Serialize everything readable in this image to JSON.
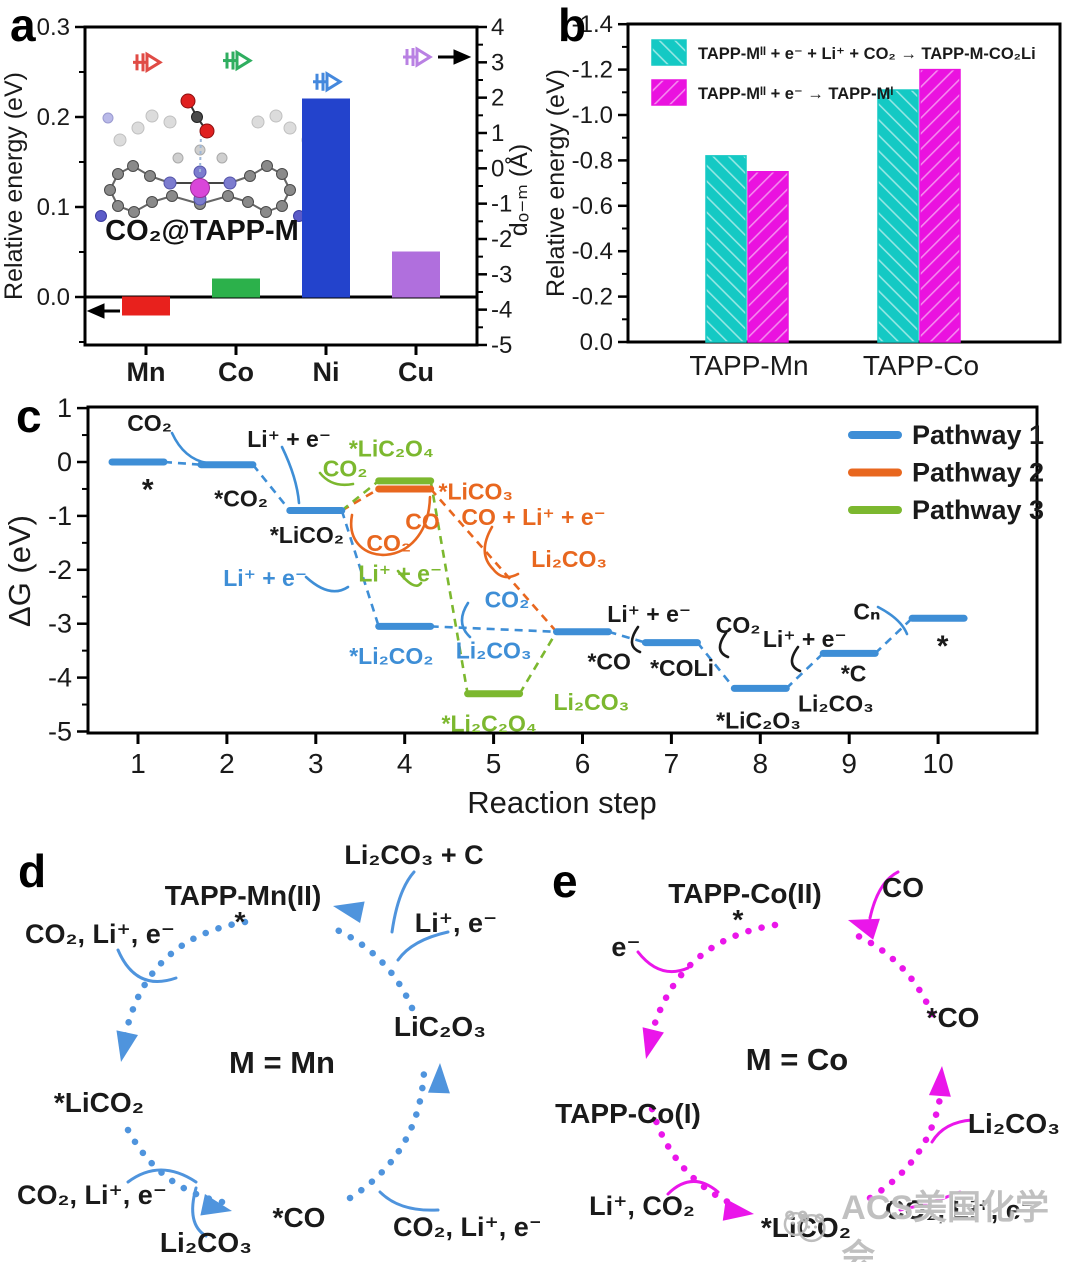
{
  "colors": {
    "black": "#1a1a1a",
    "bar_red": "#e8211d",
    "bar_green": "#2cb14b",
    "bar_blue": "#2343cc",
    "bar_purple": "#b06fdd",
    "marker_red": "#e04b45",
    "marker_green": "#2fae60",
    "marker_blue": "#4488dd",
    "marker_purple": "#b981e3",
    "cyan": "#14c9c4",
    "magenta": "#ea12df",
    "pathway1": "#3e8ed6",
    "pathway2": "#e8671f",
    "pathway3": "#7cb82f",
    "cycle_blue": "#4f94dd",
    "cycle_magenta": "#ea16ea"
  },
  "panel_letters": {
    "a": "a",
    "b": "b",
    "c": "c",
    "d": "d",
    "e": "e"
  },
  "chart_data": [
    {
      "panel": "a",
      "type": "bar",
      "categories": [
        "Mn",
        "Co",
        "Ni",
        "Cu"
      ],
      "series": [
        {
          "name": "Relative energy",
          "type": "bar",
          "axis": "left",
          "values": [
            -0.02,
            0.02,
            0.22,
            0.05
          ]
        },
        {
          "name": "dO-M distance",
          "type": "scatter",
          "axis": "right",
          "marker": "right-arrow-glyph",
          "values": [
            3.0,
            3.05,
            2.45,
            3.15
          ]
        }
      ],
      "left_axis": {
        "label": "Relative energy (eV)",
        "min": -0.053,
        "max": 0.3,
        "ticks": [
          "0.0",
          "0.1",
          "0.2",
          "0.3"
        ],
        "tick_values": [
          0,
          0.1,
          0.2,
          0.3
        ]
      },
      "right_axis": {
        "label": "dₒ₋ₘ (Å)",
        "min": -5,
        "max": 4,
        "ticks": [
          "4",
          "3",
          "2",
          "1",
          "0",
          "-1",
          "-2",
          "-3",
          "-4",
          "-5"
        ],
        "tick_values": [
          4,
          3,
          2,
          1,
          0,
          -1,
          -2,
          -3,
          -4,
          -5
        ]
      },
      "inset_label": "CO₂@TAPP-M",
      "grid": false
    },
    {
      "panel": "b",
      "type": "bar",
      "categories": [
        "TAPP-Mn",
        "TAPP-Co"
      ],
      "series": [
        {
          "name": "TAPP-Mᴵᴵ + e⁻ + Li⁺ + CO₂ → TAPP-M-CO₂Li",
          "colorKey": "cyan",
          "hatch": "\\",
          "values": [
            -0.82,
            -1.11
          ]
        },
        {
          "name": "TAPP-Mᴵᴵ + e⁻ → TAPP-Mᴵ",
          "colorKey": "magenta",
          "hatch": "/",
          "values": [
            -0.75,
            -1.2
          ]
        }
      ],
      "y_axis": {
        "label": "Relative energy (eV)",
        "inverted": true,
        "min": 0,
        "max": -1.4,
        "ticks": [
          "-1.4",
          "-1.2",
          "-1.0",
          "-0.8",
          "-0.6",
          "-0.4",
          "-0.2",
          "0.0"
        ],
        "tick_values": [
          -1.4,
          -1.2,
          -1.0,
          -0.8,
          -0.6,
          -0.4,
          -0.2,
          0.0
        ]
      },
      "legend_position": "top-left",
      "grid": false
    },
    {
      "panel": "c",
      "type": "line",
      "subtype": "energy-level-diagram",
      "xlabel": "Reaction step",
      "ylabel": "ΔG (eV)",
      "x_ticks": [
        "1",
        "2",
        "3",
        "4",
        "5",
        "6",
        "7",
        "8",
        "9",
        "10"
      ],
      "x_tick_values": [
        1,
        2,
        3,
        4,
        5,
        6,
        7,
        8,
        9,
        10
      ],
      "ylim": [
        -5,
        1
      ],
      "y_ticks": [
        "1",
        "0",
        "-1",
        "-2",
        "-3",
        "-4",
        "-5"
      ],
      "y_tick_values": [
        1,
        0,
        -1,
        -2,
        -3,
        -4,
        -5
      ],
      "legend": [
        {
          "label": "Pathway 1",
          "colorKey": "pathway1"
        },
        {
          "label": "Pathway 2",
          "colorKey": "pathway2"
        },
        {
          "label": "Pathway 3",
          "colorKey": "pathway3"
        }
      ],
      "legend_position": "top-right",
      "levels": {
        "p1": [
          {
            "step": 1,
            "dG": 0.0
          },
          {
            "step": 2,
            "dG": -0.05
          },
          {
            "step": 3,
            "dG": -0.9
          },
          {
            "step": 4,
            "dG": -3.05
          },
          {
            "step": 6,
            "dG": -3.15
          },
          {
            "step": 7,
            "dG": -3.35
          },
          {
            "step": 8,
            "dG": -4.2
          },
          {
            "step": 9,
            "dG": -3.55
          },
          {
            "step": 10,
            "dG": -2.9
          }
        ],
        "p2": [
          {
            "step": 4,
            "dG": -0.5
          }
        ],
        "p3": [
          {
            "step": 4,
            "dG": -0.35
          },
          {
            "step": 5,
            "dG": -4.3
          }
        ]
      },
      "connections": [
        {
          "colorKey": "pathway1",
          "route": [
            [
              "p1",
              0
            ],
            [
              "p1",
              1
            ],
            [
              "p1",
              2
            ],
            [
              "p1",
              3
            ],
            [
              "p1",
              4
            ],
            [
              "p1",
              5
            ],
            [
              "p1",
              6
            ],
            [
              "p1",
              7
            ],
            [
              "p1",
              8
            ]
          ]
        },
        {
          "colorKey": "pathway2",
          "route": [
            [
              "p1",
              2
            ],
            [
              "p2",
              0
            ],
            [
              "p1",
              4
            ]
          ]
        },
        {
          "colorKey": "pathway3",
          "route": [
            [
              "p1",
              2
            ],
            [
              "p3",
              0
            ],
            [
              "p3",
              1
            ],
            [
              "p1",
              4
            ]
          ]
        }
      ],
      "annotations": [
        {
          "x": 1.13,
          "y": 0.72,
          "text": "CO₂",
          "c": "k"
        },
        {
          "x": 2.7,
          "y": 0.43,
          "text": "Li⁺ + e⁻",
          "c": "k"
        },
        {
          "x": 1.11,
          "y": -0.55,
          "text": "*",
          "c": "k",
          "size": 30
        },
        {
          "x": 2.16,
          "y": -0.68,
          "text": "*CO₂",
          "c": "k"
        },
        {
          "x": 2.9,
          "y": -1.35,
          "text": "*LiCO₂",
          "c": "k"
        },
        {
          "x": 2.43,
          "y": -2.15,
          "text": "Li⁺ + e⁻",
          "c": "1"
        },
        {
          "x": 3.33,
          "y": -0.12,
          "text": "CO₂",
          "c": "3"
        },
        {
          "x": 3.85,
          "y": 0.25,
          "text": "*LiC₂O₄",
          "c": "3"
        },
        {
          "x": 4.8,
          "y": -0.55,
          "text": "*LiCO₃",
          "c": "2"
        },
        {
          "x": 4.2,
          "y": -1.1,
          "text": "CO",
          "c": "2"
        },
        {
          "x": 3.82,
          "y": -1.5,
          "text": "CO₂",
          "c": "2"
        },
        {
          "x": 5.45,
          "y": -1.02,
          "text": "CO + Li⁺ + e⁻",
          "c": "2"
        },
        {
          "x": 5.85,
          "y": -1.8,
          "text": "Li₂CO₃",
          "c": "2"
        },
        {
          "x": 3.95,
          "y": -2.07,
          "text": "Li⁺ + e⁻",
          "c": "3"
        },
        {
          "x": 5.15,
          "y": -2.55,
          "text": "CO₂",
          "c": "1"
        },
        {
          "x": 5.0,
          "y": -3.5,
          "text": "Li₂CO₃",
          "c": "1"
        },
        {
          "x": 3.85,
          "y": -3.6,
          "text": "*Li₂CO₂",
          "c": "1"
        },
        {
          "x": 6.3,
          "y": -3.7,
          "text": "*CO",
          "c": "k"
        },
        {
          "x": 4.95,
          "y": -4.85,
          "text": "*Li₂C₂O₄",
          "c": "3"
        },
        {
          "x": 6.1,
          "y": -4.45,
          "text": "Li₂CO₃",
          "c": "3"
        },
        {
          "x": 6.75,
          "y": -2.82,
          "text": "Li⁺ + e⁻",
          "c": "k"
        },
        {
          "x": 7.12,
          "y": -3.82,
          "text": "*COLi",
          "c": "k"
        },
        {
          "x": 7.75,
          "y": -3.02,
          "text": "CO₂",
          "c": "k"
        },
        {
          "x": 8.5,
          "y": -3.28,
          "text": "Li⁺ + e⁻",
          "c": "k"
        },
        {
          "x": 7.98,
          "y": -4.8,
          "text": "*LiC₂O₃",
          "c": "k"
        },
        {
          "x": 8.85,
          "y": -4.48,
          "text": "Li₂CO₃",
          "c": "k"
        },
        {
          "x": 9.05,
          "y": -3.92,
          "text": "*C",
          "c": "k"
        },
        {
          "x": 9.2,
          "y": -2.77,
          "text": "Cₙ",
          "c": "k"
        },
        {
          "x": 10.05,
          "y": -3.45,
          "text": "*",
          "c": "k",
          "size": 30
        }
      ]
    }
  ],
  "cycles": {
    "d": {
      "center_label": "M = Mn",
      "node_top": "TAPP-Mn(II)",
      "node_top_site": "*",
      "node_left": "*LiCO₂",
      "node_bottom": "*CO",
      "node_right": "LiC₂O₃",
      "in_top_left": "CO₂, Li⁺, e⁻",
      "in_bottom_left": "CO₂, Li⁺, e⁻",
      "out_bottom_left": "Li₂CO₃",
      "in_bottom_right": "CO₂, Li⁺, e⁻",
      "in_top_right": "Li⁺, e⁻",
      "out_top_right": "Li₂CO₃  + C"
    },
    "e": {
      "center_label": "M = Co",
      "node_top": "TAPP-Co(II)",
      "node_top_site": "*",
      "node_left": "TAPP-Co(I)",
      "node_bottom": "*LiCO₂",
      "node_right": "*CO",
      "in_top_left": "e⁻",
      "in_bottom_left": "Li⁺, CO₂",
      "in_bottom_right": "CO₂, Li⁺, e⁻",
      "out_mid_right": "Li₂CO₃",
      "out_top_right": "CO"
    }
  },
  "watermark": {
    "text": "ACS美国化学会"
  }
}
